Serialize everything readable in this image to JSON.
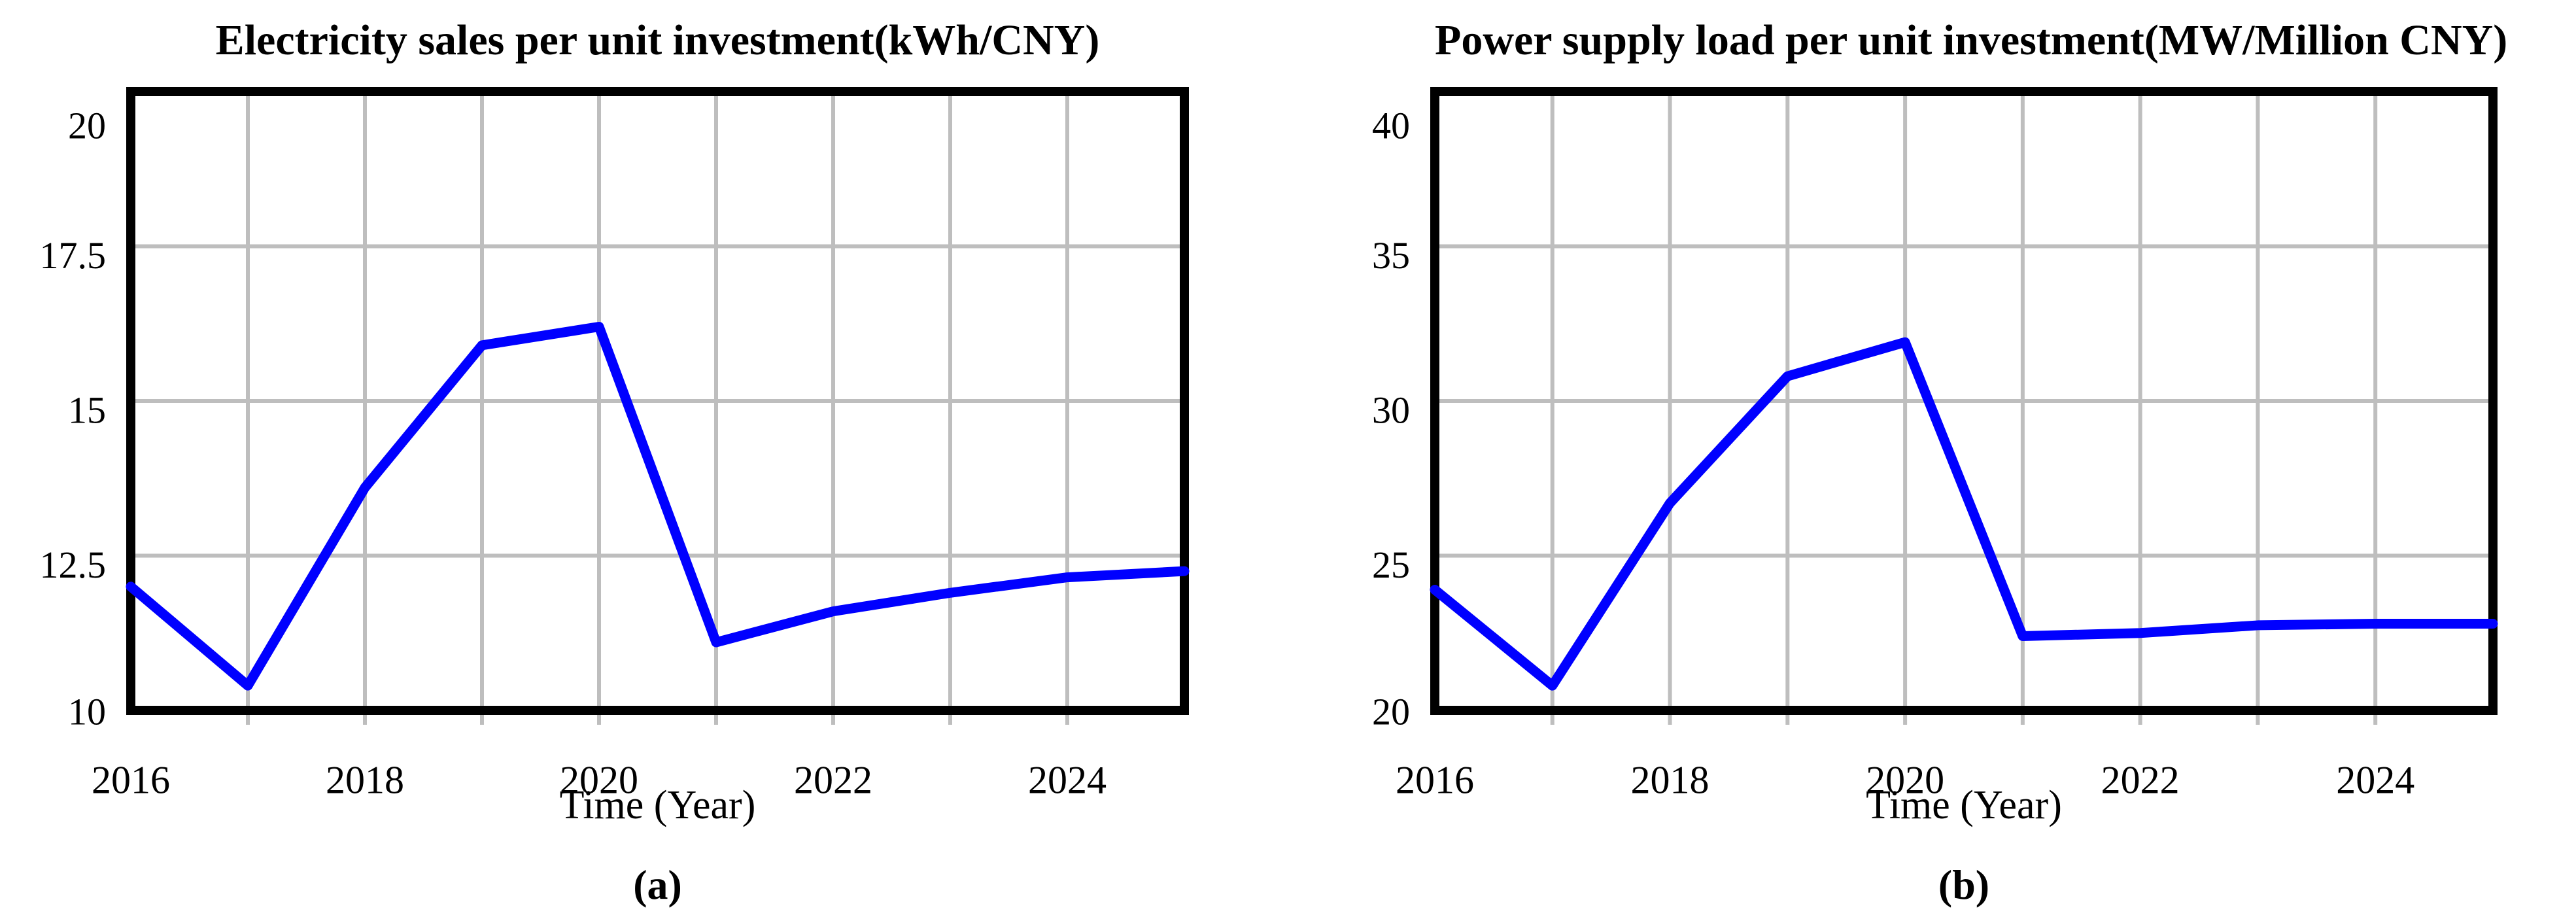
{
  "page": {
    "background": "#ffffff",
    "text_color": "#000000"
  },
  "colors": {
    "line": "#0000ff",
    "grid": "#bebebe",
    "frame": "#000000"
  },
  "chart_data": [
    {
      "type": "line",
      "title": "Electricity sales per unit investment(kWh/CNY)",
      "xlabel": "Time (Year)",
      "caption": "(a)",
      "legend": "none",
      "grid": "on",
      "x": [
        2016,
        2017,
        2018,
        2019,
        2020,
        2021,
        2022,
        2023,
        2024,
        2025
      ],
      "values": [
        12.0,
        10.4,
        13.6,
        15.9,
        16.2,
        11.1,
        11.6,
        11.9,
        12.15,
        12.25
      ],
      "xlim": [
        2016,
        2025
      ],
      "ylim": [
        10,
        20
      ],
      "y_ticks": [
        {
          "label": "20",
          "value": 20
        },
        {
          "label": "17.5",
          "value": 17.5
        },
        {
          "label": "15",
          "value": 15
        },
        {
          "label": "12.5",
          "value": 12.5
        },
        {
          "label": "10",
          "value": 10
        }
      ],
      "x_ticks": [
        {
          "label": "2016",
          "value": 2016
        },
        {
          "label": "2018",
          "value": 2018
        },
        {
          "label": "2020",
          "value": 2020
        },
        {
          "label": "2022",
          "value": 2022
        },
        {
          "label": "2024",
          "value": 2024
        }
      ]
    },
    {
      "type": "line",
      "title": "Power supply load per unit investment(MW/Million CNY)",
      "xlabel": "Time (Year)",
      "caption": "(b)",
      "legend": "none",
      "grid": "on",
      "x": [
        2016,
        2017,
        2018,
        2019,
        2020,
        2021,
        2022,
        2023,
        2024,
        2025
      ],
      "values": [
        23.9,
        20.8,
        26.7,
        30.8,
        31.9,
        22.4,
        22.5,
        22.75,
        22.8,
        22.8
      ],
      "xlim": [
        2016,
        2025
      ],
      "ylim": [
        20,
        40
      ],
      "y_ticks": [
        {
          "label": "40",
          "value": 40
        },
        {
          "label": "35",
          "value": 35
        },
        {
          "label": "30",
          "value": 30
        },
        {
          "label": "25",
          "value": 25
        },
        {
          "label": "20",
          "value": 20
        }
      ],
      "x_ticks": [
        {
          "label": "2016",
          "value": 2016
        },
        {
          "label": "2018",
          "value": 2018
        },
        {
          "label": "2020",
          "value": 2020
        },
        {
          "label": "2022",
          "value": 2022
        },
        {
          "label": "2024",
          "value": 2024
        }
      ]
    }
  ]
}
